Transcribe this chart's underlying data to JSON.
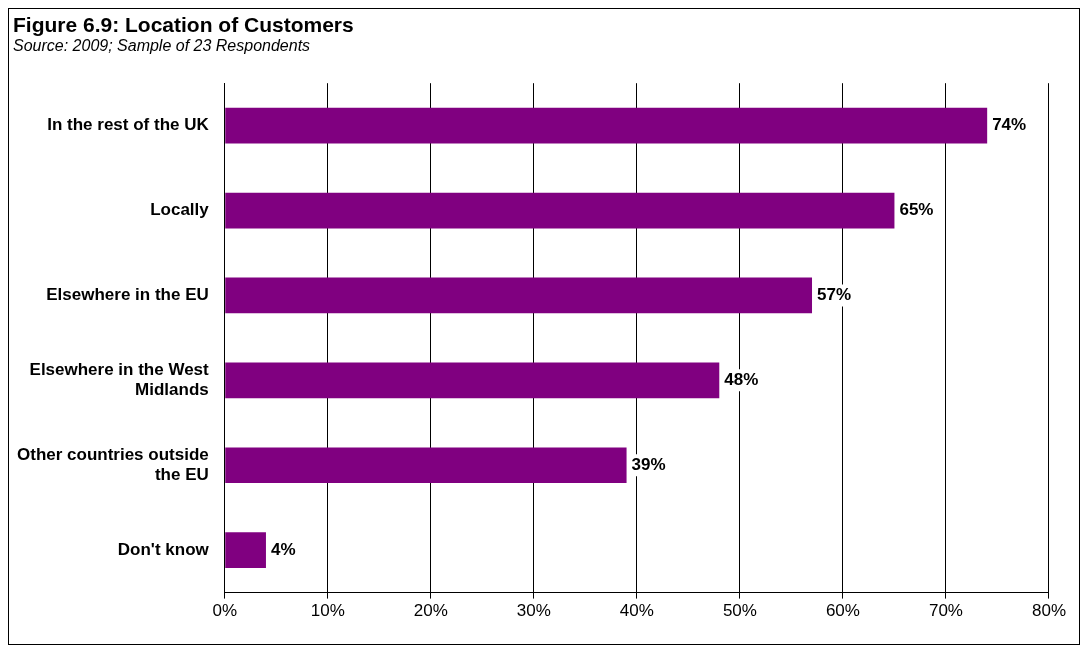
{
  "chart_data": {
    "type": "bar",
    "orientation": "horizontal",
    "title": "Figure 6.9: Location of Customers",
    "subtitle": "Source: 2009; Sample of 23 Respondents",
    "categories": [
      "In the rest of the UK",
      "Locally",
      "Elsewhere in the EU",
      "Elsewhere in the West Midlands",
      "Other countries outside the EU",
      "Don't know"
    ],
    "values": [
      74,
      65,
      57,
      48,
      39,
      4
    ],
    "value_labels": [
      "74%",
      "65%",
      "57%",
      "48%",
      "39%",
      "4%"
    ],
    "color": "#800080",
    "xlim": [
      0,
      80
    ],
    "xticks": [
      {
        "value": 0,
        "label": "0%"
      },
      {
        "value": 10,
        "label": "10%"
      },
      {
        "value": 20,
        "label": "20%"
      },
      {
        "value": 30,
        "label": "30%"
      },
      {
        "value": 40,
        "label": "40%"
      },
      {
        "value": 50,
        "label": "50%"
      },
      {
        "value": 60,
        "label": "60%"
      },
      {
        "value": 70,
        "label": "70%"
      },
      {
        "value": 80,
        "label": "80%"
      }
    ],
    "grid": "x",
    "legend": false
  }
}
